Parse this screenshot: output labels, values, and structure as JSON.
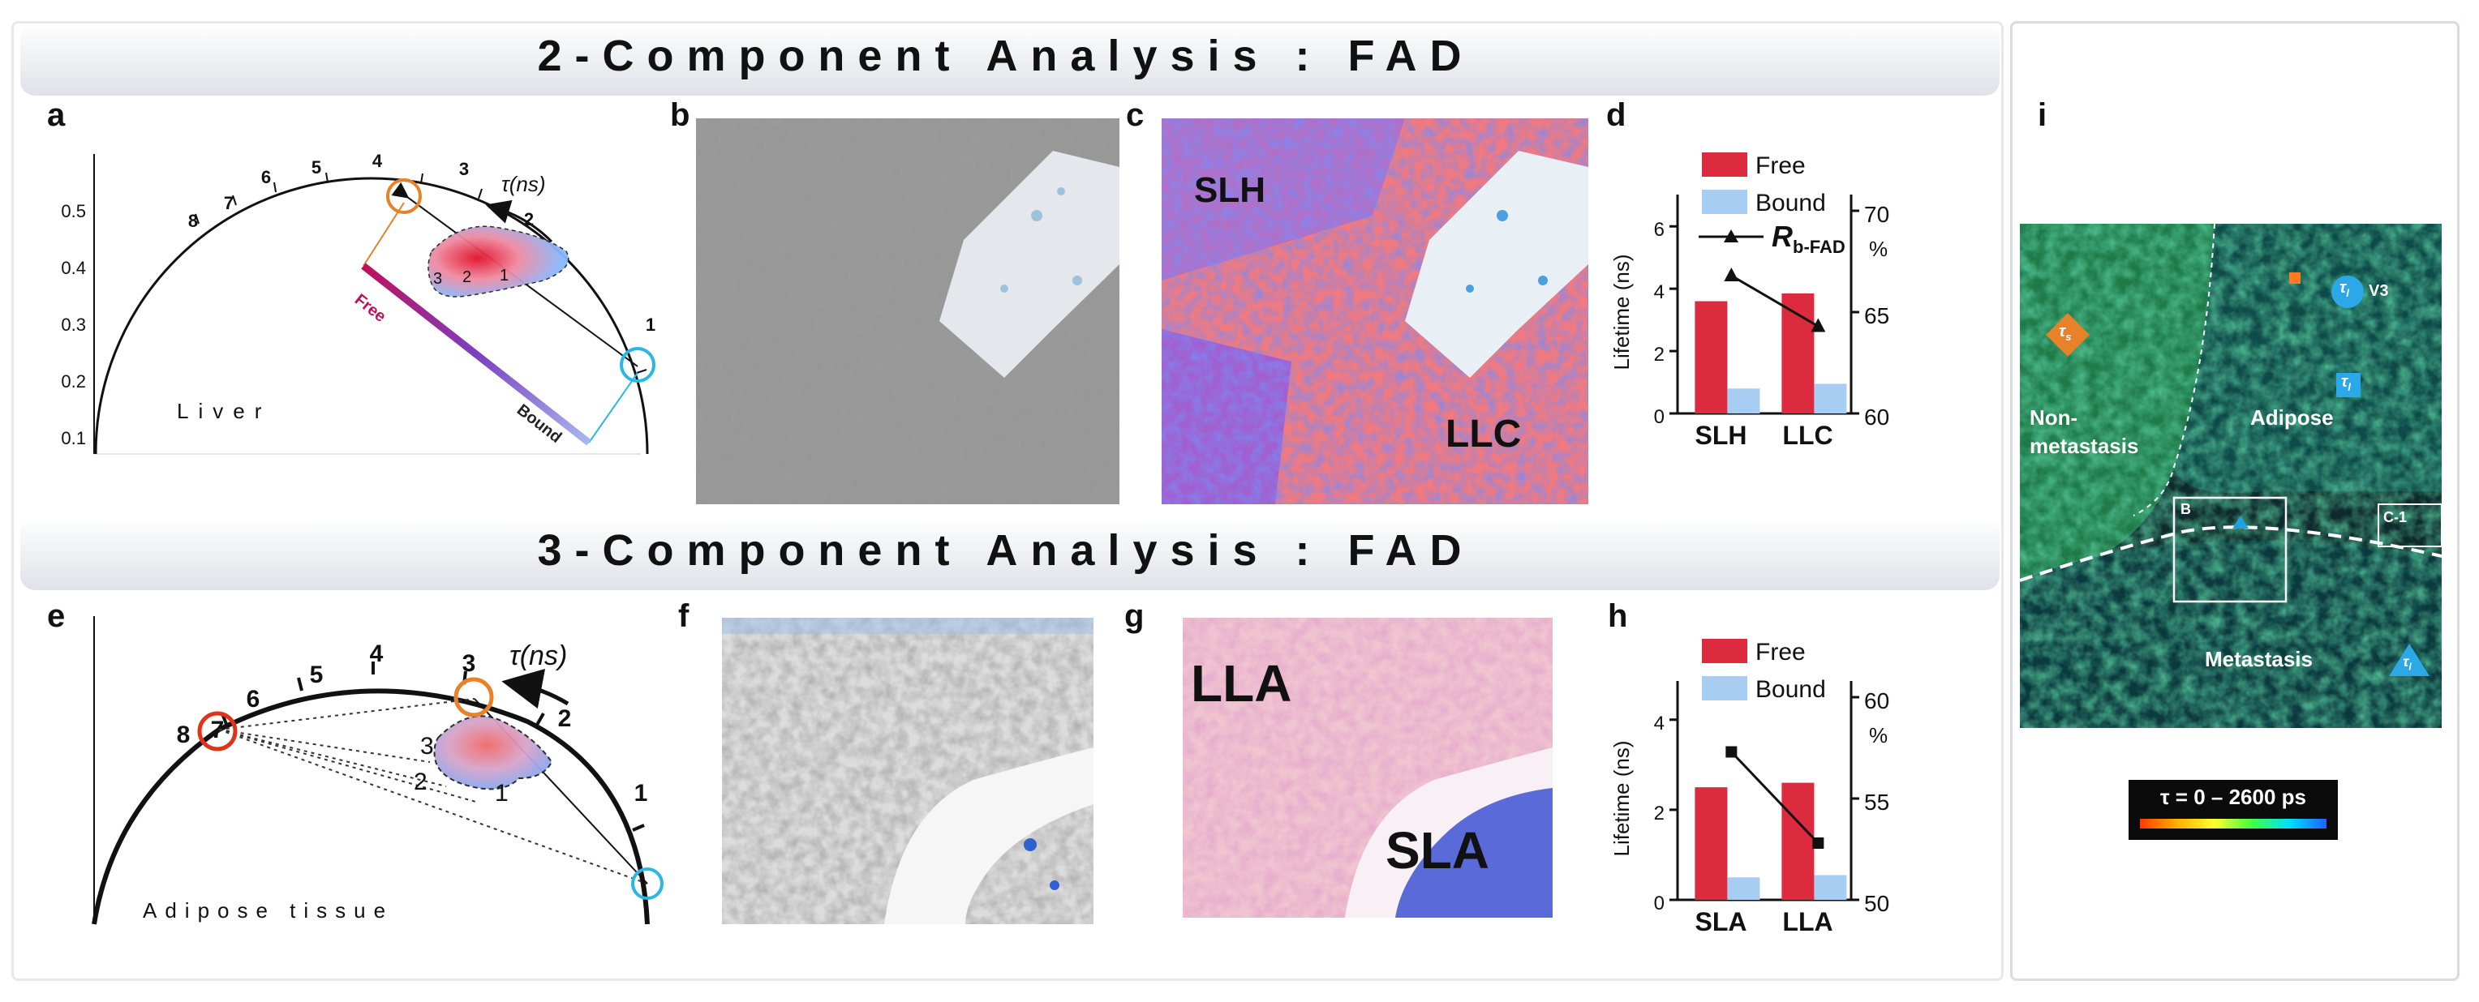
{
  "titles": {
    "top": "2-Component Analysis : FAD",
    "bottom": "3-Component Analysis : FAD"
  },
  "panel_labels": {
    "a": "a",
    "b": "b",
    "c": "c",
    "d": "d",
    "e": "e",
    "f": "f",
    "g": "g",
    "h": "h",
    "i": "i"
  },
  "phasor_a": {
    "tissue": "Liver",
    "y_ticks": [
      "0.5",
      "0.4",
      "0.3",
      "0.2",
      "0.1"
    ],
    "lifetime_ticks": [
      "8",
      "7",
      "6",
      "5",
      "4",
      "3",
      "2",
      "1"
    ],
    "tau_label": "τ(ns)",
    "component_ticks": [
      "3",
      "2",
      "1"
    ],
    "free_label": "Free",
    "bound_label": "Bound",
    "free_color": "#e8822a",
    "bound_color": "#2ab7e6"
  },
  "phasor_e": {
    "tissue": "Adipose tissue",
    "lifetime_ticks": [
      "8",
      "7",
      "6",
      "5",
      "4",
      "3",
      "2",
      "1"
    ],
    "tau_label": "τ(ns)",
    "component_ticks": [
      "3",
      "2",
      "1"
    ],
    "marker_colors": {
      "long": "#e0341a",
      "free": "#e8822a",
      "bound": "#2ab7e6"
    }
  },
  "image_c": {
    "label_1": "SLH",
    "label_2": "LLC"
  },
  "image_g": {
    "label_1": "LLA",
    "label_2": "SLA"
  },
  "chart_data": [
    {
      "type": "bar",
      "panel": "d",
      "categories": [
        "SLH",
        "LLC"
      ],
      "series": [
        {
          "name": "Free",
          "values": [
            3.6,
            3.85
          ],
          "color": "#dc2a3f"
        },
        {
          "name": "Bound",
          "values": [
            0.8,
            0.95
          ],
          "color": "#a8cdf2"
        }
      ],
      "line_series": {
        "name": "R",
        "name_sub": "b-FAD",
        "values": [
          66.8,
          64.3
        ],
        "axis": "right"
      },
      "ylabel": "Lifetime (ns)",
      "ylim": [
        0,
        6.5
      ],
      "yticks": [
        "0",
        "2",
        "4",
        "6"
      ],
      "y2label": "%",
      "y2lim": [
        60,
        70
      ],
      "y2ticks": [
        "60",
        "65",
        "70"
      ]
    },
    {
      "type": "bar",
      "panel": "h",
      "categories": [
        "SLA",
        "LLA"
      ],
      "series": [
        {
          "name": "Free",
          "values": [
            2.5,
            2.6
          ],
          "color": "#dc2a3f"
        },
        {
          "name": "Bound",
          "values": [
            0.5,
            0.55
          ],
          "color": "#a8cdf2"
        }
      ],
      "line_series": {
        "values": [
          57.3,
          52.8
        ],
        "axis": "right"
      },
      "ylabel": "Lifetime (ns)",
      "ylim": [
        0,
        4.5
      ],
      "yticks": [
        "0",
        "2",
        "4"
      ],
      "y2label": "%",
      "y2lim": [
        50,
        60
      ],
      "y2ticks": [
        "50",
        "55",
        "60"
      ]
    }
  ],
  "panel_i": {
    "labels": {
      "non_metastasis": "Non-\nmetastasis",
      "adipose": "Adipose",
      "metastasis": "Metastasis",
      "v3": "V3",
      "box_b": "B",
      "box_c": "C-1"
    },
    "tau_long": "τ",
    "tau_long_sub": "l",
    "tau_short": "τ",
    "tau_short_sub": "s",
    "colorbar": "τ = 0 – 2600 ps"
  }
}
